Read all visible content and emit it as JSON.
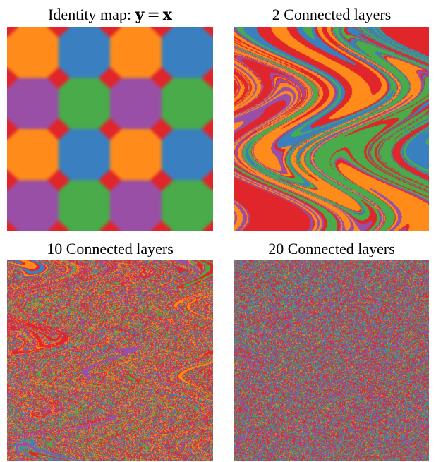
{
  "figure": {
    "palette": {
      "orange": "#ff8c1a",
      "blue": "#3a80c0",
      "purple": "#9a4fa6",
      "green": "#4aab4a",
      "red": "#e0252b"
    },
    "panels": [
      {
        "title": "Identity map: ",
        "title_math": {
          "lhs": "y",
          "rel": "=",
          "rhs": "x"
        },
        "kind": "identity"
      },
      {
        "title": "2 Connected layers",
        "kind": "warped",
        "depth": 2
      },
      {
        "title": "10 Connected layers",
        "kind": "warped",
        "depth": 10
      },
      {
        "title": "20 Connected layers",
        "kind": "warped",
        "depth": 20
      }
    ]
  }
}
